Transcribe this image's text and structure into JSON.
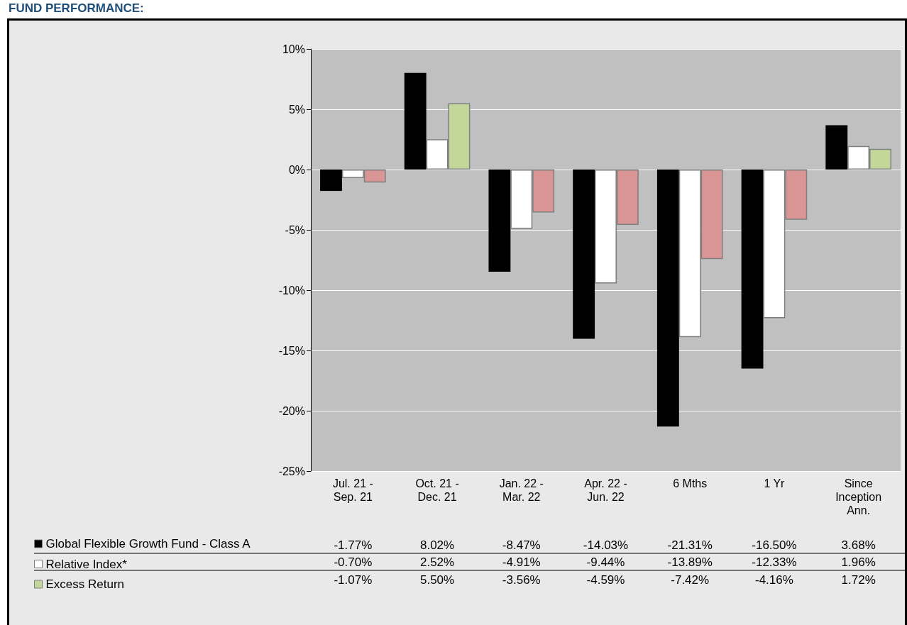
{
  "chart_data": {
    "type": "bar",
    "title": "FUND PERFORMANCE:",
    "categories": [
      "Jul. 21 -\nSep. 21",
      "Oct. 21 -\nDec. 21",
      "Jan. 22 -\nMar. 22",
      "Apr. 22 -\nJun. 22",
      "6 Mths",
      "1 Yr",
      "Since\nInception\nAnn."
    ],
    "series": [
      {
        "name": "Global Flexible Growth Fund - Class A",
        "color": "#000000",
        "values": [
          -1.77,
          8.02,
          -8.47,
          -14.03,
          -21.31,
          -16.5,
          3.68
        ],
        "value_labels": [
          "-1.77%",
          "8.02%",
          "-8.47%",
          "-14.03%",
          "-21.31%",
          "-16.50%",
          "3.68%"
        ]
      },
      {
        "name": "Relative Index*",
        "color": "#ffffff",
        "values": [
          -0.7,
          2.52,
          -4.91,
          -9.44,
          -13.89,
          -12.33,
          1.96
        ],
        "value_labels": [
          "-0.70%",
          "2.52%",
          "-4.91%",
          "-9.44%",
          "-13.89%",
          "-12.33%",
          "1.96%"
        ]
      },
      {
        "name": "Excess Return",
        "color": "#c4d79b",
        "colors": [
          "#da9694",
          "#c4d79b",
          "#da9694",
          "#da9694",
          "#da9694",
          "#da9694",
          "#c4d79b"
        ],
        "values": [
          -1.07,
          5.5,
          -3.56,
          -4.59,
          -7.42,
          -4.16,
          1.72
        ],
        "value_labels": [
          "-1.07%",
          "5.50%",
          "-3.56%",
          "-4.59%",
          "-7.42%",
          "-4.16%",
          "1.72%"
        ]
      }
    ],
    "ylim": [
      -25,
      10
    ],
    "yticks": [
      {
        "value": -25,
        "label": "-25%"
      },
      {
        "value": -20,
        "label": "-20%"
      },
      {
        "value": -15,
        "label": "-15%"
      },
      {
        "value": -10,
        "label": "-10%"
      },
      {
        "value": -5,
        "label": "-5%"
      },
      {
        "value": 0,
        "label": "0%"
      },
      {
        "value": 5,
        "label": "5%"
      },
      {
        "value": 10,
        "label": "10%"
      }
    ],
    "grid": "y",
    "legend": "bottom left"
  }
}
